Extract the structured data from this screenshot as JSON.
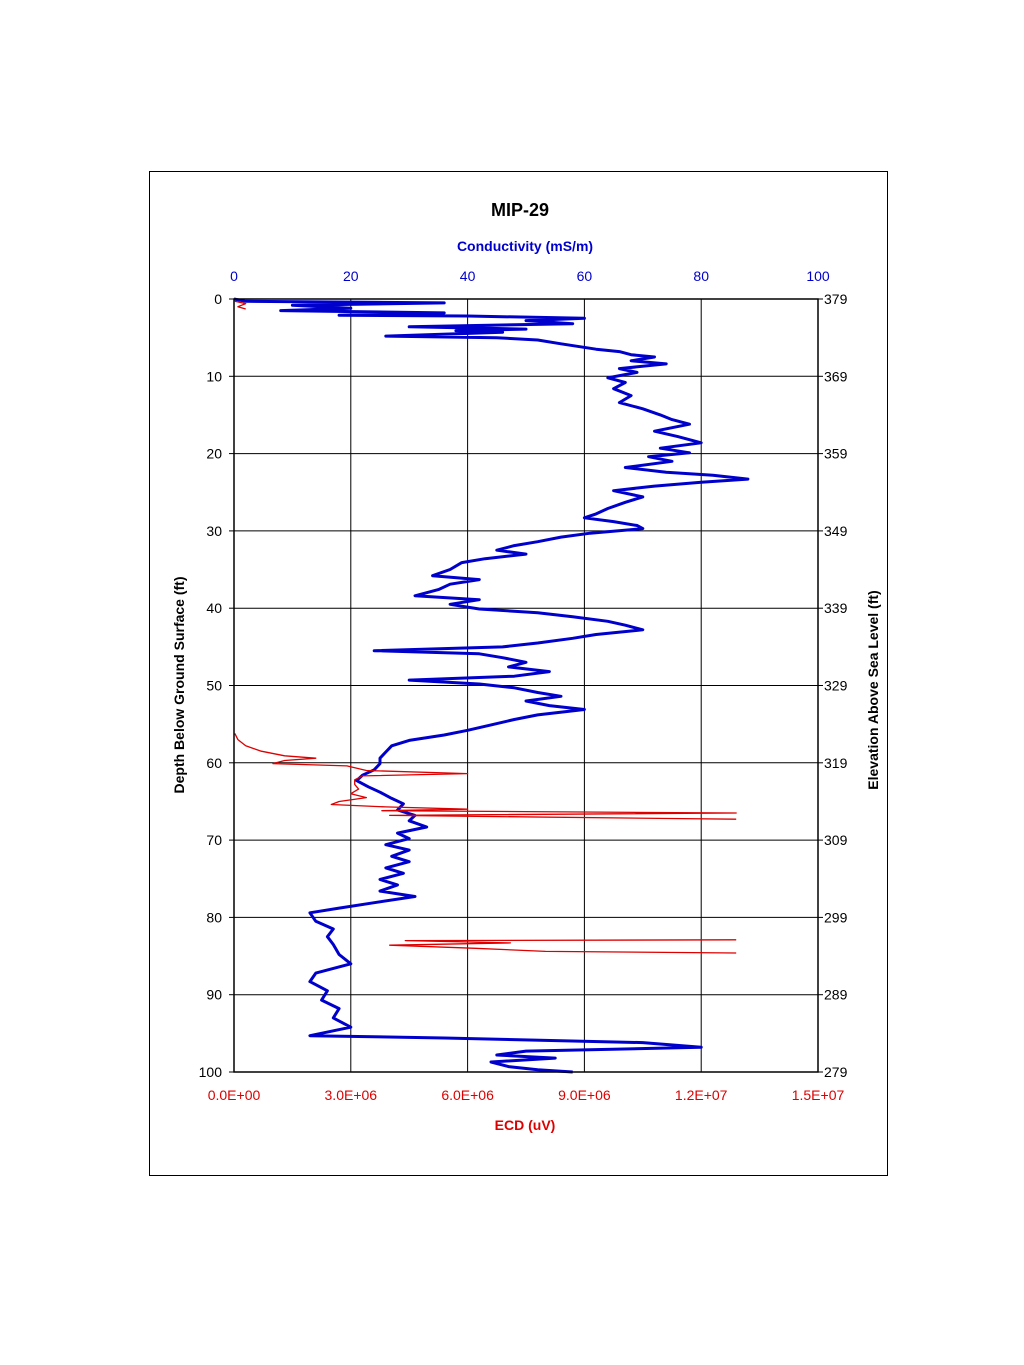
{
  "chart_data": {
    "type": "line",
    "title": "MIP-29",
    "top_axis": {
      "label": "Conductivity (mS/m)",
      "range": [
        0,
        100
      ],
      "ticks": [
        "0",
        "20",
        "40",
        "60",
        "80",
        "100"
      ],
      "color": "#0000cc"
    },
    "bottom_axis": {
      "label": "ECD (uV)",
      "range": [
        0,
        15000000
      ],
      "ticks": [
        "0.0E+00",
        "3.0E+06",
        "6.0E+06",
        "9.0E+06",
        "1.2E+07",
        "1.5E+07"
      ],
      "color": "#dd0000"
    },
    "left_axis": {
      "label": "Depth Below Ground Surface (ft)",
      "range": [
        0,
        100
      ],
      "inverted": true,
      "ticks": [
        "0",
        "10",
        "20",
        "30",
        "40",
        "50",
        "60",
        "70",
        "80",
        "90",
        "100"
      ]
    },
    "right_axis": {
      "label": "Elevation Above Sea Level (ft)",
      "range": [
        379,
        279
      ],
      "ticks": [
        "379",
        "369",
        "359",
        "349",
        "339",
        "329",
        "319",
        "309",
        "299",
        "289",
        "279"
      ]
    },
    "grid": true,
    "series": [
      {
        "axis": "top",
        "color": "#0000cc",
        "points": [
          [
            0,
            0
          ],
          [
            2,
            0.3
          ],
          [
            36,
            0.5
          ],
          [
            10,
            0.8
          ],
          [
            20,
            1.2
          ],
          [
            8,
            1.5
          ],
          [
            36,
            1.8
          ],
          [
            18,
            2.1
          ],
          [
            40,
            2.2
          ],
          [
            60,
            2.5
          ],
          [
            50,
            2.8
          ],
          [
            58,
            3.2
          ],
          [
            30,
            3.6
          ],
          [
            50,
            3.9
          ],
          [
            38,
            4.1
          ],
          [
            46,
            4.3
          ],
          [
            26,
            4.8
          ],
          [
            45,
            5.0
          ],
          [
            52,
            5.3
          ],
          [
            56,
            5.8
          ],
          [
            62,
            6.5
          ],
          [
            66,
            6.8
          ],
          [
            68,
            7.2
          ],
          [
            72,
            7.5
          ],
          [
            68,
            8.0
          ],
          [
            74,
            8.4
          ],
          [
            66,
            9.0
          ],
          [
            69,
            9.5
          ],
          [
            64,
            10.2
          ],
          [
            67,
            10.8
          ],
          [
            65,
            11.6
          ],
          [
            68,
            12.5
          ],
          [
            66,
            13.4
          ],
          [
            70,
            14.2
          ],
          [
            73,
            15.0
          ],
          [
            75,
            15.6
          ],
          [
            78,
            16.2
          ],
          [
            72,
            17.1
          ],
          [
            76,
            17.8
          ],
          [
            80,
            18.6
          ],
          [
            73,
            19.3
          ],
          [
            78,
            19.9
          ],
          [
            71,
            20.4
          ],
          [
            75,
            21.0
          ],
          [
            67,
            21.8
          ],
          [
            74,
            22.4
          ],
          [
            82,
            22.8
          ],
          [
            88,
            23.3
          ],
          [
            80,
            23.7
          ],
          [
            72,
            24.2
          ],
          [
            65,
            24.8
          ],
          [
            70,
            25.6
          ],
          [
            67,
            26.3
          ],
          [
            64,
            27.1
          ],
          [
            62,
            27.8
          ],
          [
            60,
            28.3
          ],
          [
            65,
            28.8
          ],
          [
            69,
            29.3
          ],
          [
            70,
            29.7
          ],
          [
            61,
            30.3
          ],
          [
            56,
            30.8
          ],
          [
            52,
            31.4
          ],
          [
            48,
            31.9
          ],
          [
            45,
            32.5
          ],
          [
            50,
            33.0
          ],
          [
            43,
            33.6
          ],
          [
            39,
            34.1
          ],
          [
            37,
            35.0
          ],
          [
            34,
            35.8
          ],
          [
            42,
            36.3
          ],
          [
            37,
            36.9
          ],
          [
            35,
            37.6
          ],
          [
            31,
            38.4
          ],
          [
            42,
            38.9
          ],
          [
            37,
            39.5
          ],
          [
            42,
            40.1
          ],
          [
            52,
            40.6
          ],
          [
            58,
            41.1
          ],
          [
            64,
            41.7
          ],
          [
            67,
            42.2
          ],
          [
            70,
            42.8
          ],
          [
            62,
            43.4
          ],
          [
            58,
            43.9
          ],
          [
            52,
            44.5
          ],
          [
            46,
            45.0
          ],
          [
            24,
            45.5
          ],
          [
            42,
            45.9
          ],
          [
            46,
            46.4
          ],
          [
            50,
            47.0
          ],
          [
            47,
            47.6
          ],
          [
            54,
            48.2
          ],
          [
            48,
            48.8
          ],
          [
            30,
            49.3
          ],
          [
            42,
            49.8
          ],
          [
            48,
            50.3
          ],
          [
            52,
            50.9
          ],
          [
            56,
            51.4
          ],
          [
            50,
            52.0
          ],
          [
            54,
            52.6
          ],
          [
            60,
            53.1
          ],
          [
            52,
            53.8
          ],
          [
            48,
            54.4
          ],
          [
            44,
            55.1
          ],
          [
            40,
            55.8
          ],
          [
            36,
            56.4
          ],
          [
            30,
            57.1
          ],
          [
            27,
            57.8
          ],
          [
            26,
            58.6
          ],
          [
            25,
            59.4
          ],
          [
            25,
            60.1
          ],
          [
            24,
            60.9
          ],
          [
            22,
            61.6
          ],
          [
            21,
            62.3
          ],
          [
            23,
            63.1
          ],
          [
            25,
            63.8
          ],
          [
            27,
            64.6
          ],
          [
            29,
            65.3
          ],
          [
            28,
            66.1
          ],
          [
            31,
            66.8
          ],
          [
            30,
            67.5
          ],
          [
            33,
            68.3
          ],
          [
            28,
            69.1
          ],
          [
            30,
            69.8
          ],
          [
            26,
            70.6
          ],
          [
            30,
            71.3
          ],
          [
            27,
            72.1
          ],
          [
            30,
            72.8
          ],
          [
            26,
            73.6
          ],
          [
            29,
            74.3
          ],
          [
            25,
            75.1
          ],
          [
            28,
            75.8
          ],
          [
            25,
            76.6
          ],
          [
            31,
            77.3
          ],
          [
            24,
            78.1
          ],
          [
            18,
            78.8
          ],
          [
            13,
            79.4
          ],
          [
            14,
            80.5
          ],
          [
            17,
            81.5
          ],
          [
            16,
            82.5
          ],
          [
            17,
            83.5
          ],
          [
            18,
            84.8
          ],
          [
            20,
            86.0
          ],
          [
            14,
            87.2
          ],
          [
            13,
            88.3
          ],
          [
            16,
            89.5
          ],
          [
            15,
            90.7
          ],
          [
            18,
            91.8
          ],
          [
            17,
            93.0
          ],
          [
            20,
            94.2
          ],
          [
            13,
            95.3
          ],
          [
            36,
            95.6
          ],
          [
            70,
            96.2
          ],
          [
            80,
            96.8
          ],
          [
            50,
            97.3
          ],
          [
            45,
            97.8
          ],
          [
            55,
            98.2
          ],
          [
            44,
            98.7
          ],
          [
            47,
            99.3
          ],
          [
            52,
            99.7
          ],
          [
            58,
            100
          ]
        ]
      },
      {
        "axis": "bottom",
        "color": "#dd0000",
        "points": [
          [
            20000,
            56.2
          ],
          [
            100000,
            57.0
          ],
          [
            300000,
            57.8
          ],
          [
            700000,
            58.5
          ],
          [
            1300000,
            59.1
          ],
          [
            2100000,
            59.4
          ],
          [
            1300000,
            59.7
          ],
          [
            1000000,
            60.1
          ],
          [
            2900000,
            60.4
          ],
          [
            3400000,
            61.0
          ],
          [
            6000000,
            61.4
          ],
          [
            3300000,
            61.7
          ],
          [
            3100000,
            62.2
          ],
          [
            3100000,
            62.8
          ],
          [
            3200000,
            63.4
          ],
          [
            3000000,
            64.0
          ],
          [
            3400000,
            64.5
          ],
          [
            2700000,
            65.0
          ],
          [
            2500000,
            65.4
          ],
          [
            3900000,
            65.7
          ],
          [
            6000000,
            66.0
          ],
          [
            3800000,
            66.2
          ],
          [
            12900000,
            66.5
          ],
          [
            4000000,
            66.8
          ],
          [
            11200000,
            67.2
          ],
          [
            12900000,
            67.3
          ]
        ]
      },
      {
        "axis": "bottom",
        "color": "#dd0000",
        "points": [
          [
            12900000,
            82.9
          ],
          [
            4400000,
            83.0
          ],
          [
            7100000,
            83.3
          ],
          [
            4000000,
            83.6
          ],
          [
            6200000,
            84.0
          ],
          [
            8000000,
            84.4
          ],
          [
            12900000,
            84.6
          ]
        ]
      },
      {
        "axis": "bottom",
        "color": "#dd0000",
        "points": [
          [
            20000,
            0.3
          ],
          [
            300000,
            0.6
          ],
          [
            100000,
            1.0
          ],
          [
            300000,
            1.3
          ]
        ]
      }
    ]
  }
}
